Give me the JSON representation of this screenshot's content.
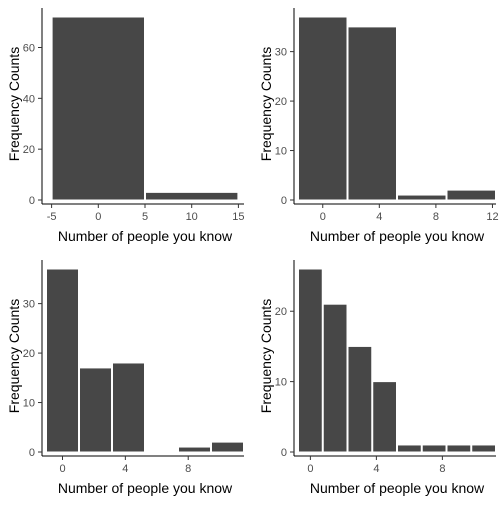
{
  "chart_data": [
    {
      "type": "bar",
      "xlabel": "Number of people you know",
      "ylabel": "Frequency Counts",
      "bin_edges": [
        -5,
        5,
        15
      ],
      "values": [
        72,
        3
      ],
      "xlim": [
        -5.6,
        15.6
      ],
      "ylim": [
        0,
        72
      ],
      "xticks": [
        -5,
        0,
        5,
        10,
        15
      ],
      "yticks": [
        0,
        20,
        40,
        60
      ]
    },
    {
      "type": "bar",
      "xlabel": "Number of people you know",
      "ylabel": "Frequency Counts",
      "bin_edges": [
        -1.75,
        1.75,
        5.25,
        8.75,
        12.25
      ],
      "values": [
        37,
        35,
        1,
        2
      ],
      "xlim": [
        -1.75,
        12.25
      ],
      "ylim": [
        0,
        37
      ],
      "xticks": [
        0,
        4,
        8,
        12
      ],
      "yticks": [
        0,
        10,
        20,
        30
      ]
    },
    {
      "type": "bar",
      "xlabel": "Number of people you know",
      "ylabel": "Frequency Counts",
      "bin_edges": [
        -1.05,
        1.05,
        3.15,
        5.25,
        7.35,
        9.45,
        11.55
      ],
      "values": [
        37,
        17,
        18,
        0,
        1,
        2
      ],
      "xlim": [
        -1.05,
        11.55
      ],
      "ylim": [
        0,
        37
      ],
      "xticks": [
        0,
        4,
        8
      ],
      "yticks": [
        0,
        10,
        20,
        30
      ]
    },
    {
      "type": "bar",
      "xlabel": "Number of people you know",
      "ylabel": "Frequency Counts",
      "bin_edges": [
        -0.75,
        0.75,
        2.25,
        3.75,
        5.25,
        6.75,
        8.25,
        9.75,
        11.25
      ],
      "values": [
        26,
        21,
        15,
        10,
        1,
        1,
        1,
        1
      ],
      "xlim": [
        -0.75,
        11.25
      ],
      "ylim": [
        0,
        26
      ],
      "xticks": [
        0,
        4,
        8
      ],
      "yticks": [
        0,
        10,
        20
      ]
    }
  ]
}
